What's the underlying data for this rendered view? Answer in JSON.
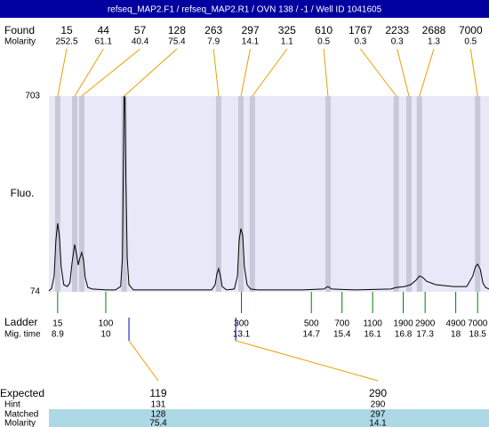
{
  "header": {
    "title": "refseq_MAP2.F1 / refseq_MAP2.R1 / OVN 138 / -1 / Well ID 1041605"
  },
  "chart_data": {
    "type": "line",
    "ylabel": "Fluo.",
    "color": "#000000",
    "xlim": [
      8.7,
      18.76
    ],
    "ylim": [
      74,
      703
    ],
    "yticks": [
      74,
      703
    ],
    "x": [
      8.7,
      8.76,
      8.82,
      8.86,
      8.9,
      8.94,
      8.98,
      9.04,
      9.12,
      9.18,
      9.23,
      9.29,
      9.33,
      9.37,
      9.41,
      9.45,
      9.49,
      9.53,
      9.59,
      9.69,
      10.02,
      10.22,
      10.34,
      10.38,
      10.4,
      10.42,
      10.44,
      10.46,
      10.49,
      10.53,
      10.63,
      11.64,
      12.42,
      12.5,
      12.54,
      12.58,
      12.62,
      12.66,
      12.76,
      12.94,
      13.01,
      13.05,
      13.09,
      13.13,
      13.17,
      13.23,
      13.31,
      13.47,
      14.49,
      14.98,
      15.08,
      15.16,
      15.71,
      16.52,
      16.64,
      16.83,
      16.97,
      17.09,
      17.17,
      17.25,
      17.33,
      17.54,
      17.94,
      18.25,
      18.39,
      18.45,
      18.5,
      18.56,
      18.62,
      18.68,
      18.76
    ],
    "values": [
      77,
      85,
      125,
      240,
      294,
      254,
      154,
      97,
      91,
      103,
      168,
      226,
      197,
      160,
      183,
      200,
      177,
      120,
      88,
      83,
      80,
      80,
      91,
      183,
      440,
      703,
      697,
      440,
      183,
      97,
      80,
      80,
      80,
      97,
      131,
      148,
      125,
      91,
      80,
      83,
      125,
      240,
      277,
      254,
      154,
      97,
      83,
      80,
      80,
      83,
      91,
      83,
      80,
      83,
      88,
      91,
      97,
      111,
      125,
      120,
      108,
      97,
      91,
      91,
      125,
      154,
      163,
      146,
      103,
      88,
      83
    ]
  },
  "found": {
    "label": "Found",
    "sublabel": "Molarity",
    "peaks": [
      {
        "size": 15,
        "molarity": 252.5,
        "time": 8.9
      },
      {
        "size": 44,
        "molarity": 61.1,
        "time": 9.29
      },
      {
        "size": 57,
        "molarity": 40.4,
        "time": 9.45
      },
      {
        "size": 128,
        "molarity": 75.4,
        "time": 10.42
      },
      {
        "size": 263,
        "molarity": 7.9,
        "time": 12.58
      },
      {
        "size": 297,
        "molarity": 14.1,
        "time": 13.09
      },
      {
        "size": 325,
        "molarity": 1.1,
        "time": 13.35
      },
      {
        "size": 610,
        "molarity": 0.5,
        "time": 15.08
      },
      {
        "size": 1767,
        "molarity": 0.3,
        "time": 16.64
      },
      {
        "size": 2233,
        "molarity": 0.3,
        "time": 16.93
      },
      {
        "size": 2688,
        "molarity": 1.3,
        "time": 17.17
      },
      {
        "size": 7000,
        "molarity": 0.5,
        "time": 18.5
      }
    ]
  },
  "ladder": {
    "label": "Ladder",
    "sublabel": "Mig. time",
    "sizes": [
      15,
      100,
      300,
      500,
      700,
      1100,
      1900,
      2900,
      4900,
      7000
    ],
    "times": [
      8.9,
      10,
      13.1,
      14.7,
      15.4,
      16.1,
      16.8,
      17.3,
      18,
      18.5
    ]
  },
  "expected": {
    "row_labels": [
      "Expected",
      "Hint",
      "Matched",
      "Molarity"
    ],
    "columns": [
      {
        "time": 10.53,
        "cells": [
          119,
          131,
          128,
          75.4
        ]
      },
      {
        "time": 12.97,
        "cells": [
          290,
          290,
          297,
          14.1
        ]
      }
    ]
  }
}
